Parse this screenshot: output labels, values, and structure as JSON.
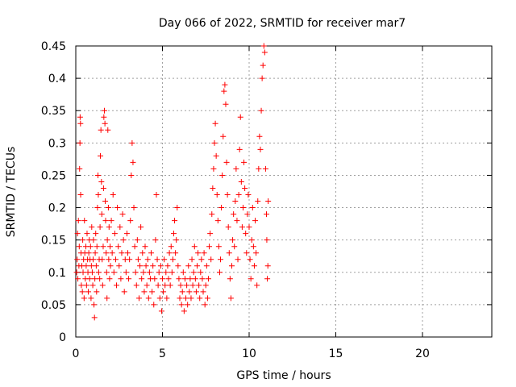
{
  "chart_data": {
    "type": "scatter",
    "title": "Day 066 of 2022, SRMTID for receiver mar7",
    "xlabel": "GPS time / hours",
    "ylabel": "SRMTID / TECUs",
    "xlim": [
      0,
      24
    ],
    "ylim": [
      0,
      0.45
    ],
    "x_ticks": [
      0,
      5,
      10,
      15,
      20
    ],
    "y_ticks": [
      0,
      0.05,
      0.1,
      0.15,
      0.2,
      0.25,
      0.3,
      0.35,
      0.4,
      0.45
    ],
    "x_tick_labels": [
      "0",
      "5",
      "10",
      "15",
      "20"
    ],
    "y_tick_labels": [
      "0",
      "0.05",
      "0.1",
      "0.15",
      "0.2",
      "0.25",
      "0.3",
      "0.35",
      "0.4",
      "0.45"
    ],
    "grid": true,
    "marker": "+",
    "color": "#ff0000",
    "series": [
      {
        "name": "",
        "points": [
          [
            0.05,
            0.1
          ],
          [
            0.08,
            0.12
          ],
          [
            0.1,
            0.16
          ],
          [
            0.12,
            0.09
          ],
          [
            0.15,
            0.18
          ],
          [
            0.18,
            0.11
          ],
          [
            0.2,
            0.14
          ],
          [
            0.22,
            0.26
          ],
          [
            0.24,
            0.3
          ],
          [
            0.25,
            0.34
          ],
          [
            0.27,
            0.33
          ],
          [
            0.28,
            0.22
          ],
          [
            0.3,
            0.13
          ],
          [
            0.32,
            0.08
          ],
          [
            0.35,
            0.11
          ],
          [
            0.38,
            0.07
          ],
          [
            0.4,
            0.15
          ],
          [
            0.42,
            0.1
          ],
          [
            0.45,
            0.12
          ],
          [
            0.48,
            0.06
          ],
          [
            0.5,
            0.18
          ],
          [
            0.52,
            0.13
          ],
          [
            0.55,
            0.09
          ],
          [
            0.58,
            0.14
          ],
          [
            0.6,
            0.11
          ],
          [
            0.62,
            0.08
          ],
          [
            0.65,
            0.16
          ],
          [
            0.68,
            0.12
          ],
          [
            0.7,
            0.1
          ],
          [
            0.72,
            0.07
          ],
          [
            0.75,
            0.13
          ],
          [
            0.78,
            0.15
          ],
          [
            0.8,
            0.09
          ],
          [
            0.82,
            0.12
          ],
          [
            0.85,
            0.14
          ],
          [
            0.88,
            0.06
          ],
          [
            0.9,
            0.11
          ],
          [
            0.92,
            0.17
          ],
          [
            0.95,
            0.1
          ],
          [
            0.98,
            0.08
          ],
          [
            1.0,
            0.12
          ],
          [
            1.02,
            0.15
          ],
          [
            1.05,
            0.05
          ],
          [
            1.08,
            0.03
          ],
          [
            1.1,
            0.09
          ],
          [
            1.12,
            0.13
          ],
          [
            1.15,
            0.16
          ],
          [
            1.18,
            0.11
          ],
          [
            1.2,
            0.07
          ],
          [
            1.22,
            0.14
          ],
          [
            1.25,
            0.2
          ],
          [
            1.28,
            0.25
          ],
          [
            1.3,
            0.22
          ],
          [
            1.32,
            0.1
          ],
          [
            1.35,
            0.12
          ],
          [
            1.38,
            0.09
          ],
          [
            1.4,
            0.17
          ],
          [
            1.42,
            0.28
          ],
          [
            1.45,
            0.32
          ],
          [
            1.48,
            0.24
          ],
          [
            1.5,
            0.19
          ],
          [
            1.52,
            0.12
          ],
          [
            1.55,
            0.08
          ],
          [
            1.58,
            0.14
          ],
          [
            1.6,
            0.23
          ],
          [
            1.62,
            0.34
          ],
          [
            1.65,
            0.35
          ],
          [
            1.68,
            0.33
          ],
          [
            1.7,
            0.21
          ],
          [
            1.72,
            0.18
          ],
          [
            1.75,
            0.13
          ],
          [
            1.78,
            0.1
          ],
          [
            1.8,
            0.06
          ],
          [
            1.82,
            0.15
          ],
          [
            1.85,
            0.32
          ],
          [
            1.88,
            0.2
          ],
          [
            1.9,
            0.12
          ],
          [
            1.92,
            0.17
          ],
          [
            1.95,
            0.09
          ],
          [
            1.98,
            0.14
          ],
          [
            2.0,
            0.11
          ],
          [
            2.05,
            0.18
          ],
          [
            2.1,
            0.13
          ],
          [
            2.15,
            0.22
          ],
          [
            2.2,
            0.1
          ],
          [
            2.25,
            0.16
          ],
          [
            2.3,
            0.12
          ],
          [
            2.35,
            0.08
          ],
          [
            2.4,
            0.2
          ],
          [
            2.45,
            0.14
          ],
          [
            2.5,
            0.11
          ],
          [
            2.55,
            0.17
          ],
          [
            2.6,
            0.09
          ],
          [
            2.65,
            0.13
          ],
          [
            2.7,
            0.19
          ],
          [
            2.75,
            0.15
          ],
          [
            2.8,
            0.07
          ],
          [
            2.85,
            0.12
          ],
          [
            2.9,
            0.1
          ],
          [
            2.95,
            0.16
          ],
          [
            3.0,
            0.13
          ],
          [
            3.05,
            0.09
          ],
          [
            3.1,
            0.12
          ],
          [
            3.15,
            0.18
          ],
          [
            3.2,
            0.25
          ],
          [
            3.25,
            0.3
          ],
          [
            3.3,
            0.27
          ],
          [
            3.35,
            0.2
          ],
          [
            3.4,
            0.14
          ],
          [
            3.45,
            0.1
          ],
          [
            3.5,
            0.08
          ],
          [
            3.55,
            0.15
          ],
          [
            3.6,
            0.12
          ],
          [
            3.65,
            0.06
          ],
          [
            3.7,
            0.11
          ],
          [
            3.75,
            0.17
          ],
          [
            3.8,
            0.09
          ],
          [
            3.85,
            0.13
          ],
          [
            3.9,
            0.1
          ],
          [
            3.95,
            0.07
          ],
          [
            4.0,
            0.14
          ],
          [
            4.05,
            0.11
          ],
          [
            4.1,
            0.08
          ],
          [
            4.15,
            0.12
          ],
          [
            4.2,
            0.06
          ],
          [
            4.25,
            0.1
          ],
          [
            4.3,
            0.09
          ],
          [
            4.35,
            0.13
          ],
          [
            4.4,
            0.07
          ],
          [
            4.45,
            0.11
          ],
          [
            4.5,
            0.05
          ],
          [
            4.55,
            0.09
          ],
          [
            4.6,
            0.15
          ],
          [
            4.65,
            0.22
          ],
          [
            4.7,
            0.12
          ],
          [
            4.75,
            0.08
          ],
          [
            4.8,
            0.1
          ],
          [
            4.85,
            0.06
          ],
          [
            4.9,
            0.11
          ],
          [
            4.95,
            0.04
          ],
          [
            5.0,
            0.09
          ],
          [
            5.05,
            0.07
          ],
          [
            5.1,
            0.12
          ],
          [
            5.15,
            0.08
          ],
          [
            5.2,
            0.1
          ],
          [
            5.25,
            0.06
          ],
          [
            5.3,
            0.11
          ],
          [
            5.35,
            0.09
          ],
          [
            5.4,
            0.13
          ],
          [
            5.45,
            0.08
          ],
          [
            5.5,
            0.14
          ],
          [
            5.55,
            0.1
          ],
          [
            5.6,
            0.12
          ],
          [
            5.65,
            0.16
          ],
          [
            5.7,
            0.18
          ],
          [
            5.75,
            0.13
          ],
          [
            5.8,
            0.15
          ],
          [
            5.85,
            0.2
          ],
          [
            5.9,
            0.11
          ],
          [
            5.95,
            0.09
          ],
          [
            6.0,
            0.06
          ],
          [
            6.05,
            0.08
          ],
          [
            6.1,
            0.05
          ],
          [
            6.15,
            0.07
          ],
          [
            6.2,
            0.1
          ],
          [
            6.25,
            0.04
          ],
          [
            6.3,
            0.09
          ],
          [
            6.35,
            0.06
          ],
          [
            6.4,
            0.08
          ],
          [
            6.45,
            0.05
          ],
          [
            6.5,
            0.11
          ],
          [
            6.55,
            0.07
          ],
          [
            6.6,
            0.09
          ],
          [
            6.65,
            0.06
          ],
          [
            6.7,
            0.12
          ],
          [
            6.75,
            0.08
          ],
          [
            6.8,
            0.1
          ],
          [
            6.85,
            0.14
          ],
          [
            6.9,
            0.09
          ],
          [
            6.95,
            0.07
          ],
          [
            7.0,
            0.11
          ],
          [
            7.05,
            0.13
          ],
          [
            7.1,
            0.08
          ],
          [
            7.15,
            0.06
          ],
          [
            7.2,
            0.1
          ],
          [
            7.25,
            0.12
          ],
          [
            7.3,
            0.09
          ],
          [
            7.35,
            0.07
          ],
          [
            7.4,
            0.13
          ],
          [
            7.45,
            0.05
          ],
          [
            7.5,
            0.08
          ],
          [
            7.55,
            0.11
          ],
          [
            7.6,
            0.06
          ],
          [
            7.65,
            0.09
          ],
          [
            7.7,
            0.14
          ],
          [
            7.75,
            0.16
          ],
          [
            7.8,
            0.12
          ],
          [
            7.85,
            0.19
          ],
          [
            7.9,
            0.23
          ],
          [
            7.95,
            0.26
          ],
          [
            8.0,
            0.3
          ],
          [
            8.05,
            0.33
          ],
          [
            8.1,
            0.28
          ],
          [
            8.15,
            0.22
          ],
          [
            8.2,
            0.18
          ],
          [
            8.25,
            0.14
          ],
          [
            8.3,
            0.1
          ],
          [
            8.35,
            0.12
          ],
          [
            8.4,
            0.2
          ],
          [
            8.45,
            0.25
          ],
          [
            8.5,
            0.31
          ],
          [
            8.55,
            0.38
          ],
          [
            8.6,
            0.39
          ],
          [
            8.65,
            0.36
          ],
          [
            8.7,
            0.27
          ],
          [
            8.75,
            0.22
          ],
          [
            8.8,
            0.17
          ],
          [
            8.85,
            0.13
          ],
          [
            8.9,
            0.09
          ],
          [
            8.95,
            0.06
          ],
          [
            9.0,
            0.11
          ],
          [
            9.05,
            0.15
          ],
          [
            9.1,
            0.19
          ],
          [
            9.15,
            0.14
          ],
          [
            9.2,
            0.21
          ],
          [
            9.25,
            0.26
          ],
          [
            9.3,
            0.18
          ],
          [
            9.35,
            0.12
          ],
          [
            9.4,
            0.22
          ],
          [
            9.45,
            0.29
          ],
          [
            9.5,
            0.34
          ],
          [
            9.55,
            0.24
          ],
          [
            9.6,
            0.17
          ],
          [
            9.65,
            0.2
          ],
          [
            9.7,
            0.27
          ],
          [
            9.75,
            0.23
          ],
          [
            9.8,
            0.16
          ],
          [
            9.85,
            0.13
          ],
          [
            9.9,
            0.19
          ],
          [
            9.95,
            0.22
          ],
          [
            10.0,
            0.17
          ],
          [
            10.05,
            0.12
          ],
          [
            10.1,
            0.09
          ],
          [
            10.15,
            0.15
          ],
          [
            10.2,
            0.2
          ],
          [
            10.25,
            0.14
          ],
          [
            10.3,
            0.11
          ],
          [
            10.35,
            0.18
          ],
          [
            10.4,
            0.13
          ],
          [
            10.45,
            0.08
          ],
          [
            10.5,
            0.21
          ],
          [
            10.55,
            0.26
          ],
          [
            10.6,
            0.31
          ],
          [
            10.65,
            0.29
          ],
          [
            10.7,
            0.35
          ],
          [
            10.75,
            0.4
          ],
          [
            10.8,
            0.42
          ],
          [
            10.85,
            0.45
          ],
          [
            10.9,
            0.44
          ],
          [
            10.95,
            0.26
          ],
          [
            11.0,
            0.19
          ],
          [
            11.02,
            0.15
          ],
          [
            11.05,
            0.09
          ],
          [
            11.08,
            0.11
          ],
          [
            11.1,
            0.21
          ]
        ]
      }
    ]
  }
}
